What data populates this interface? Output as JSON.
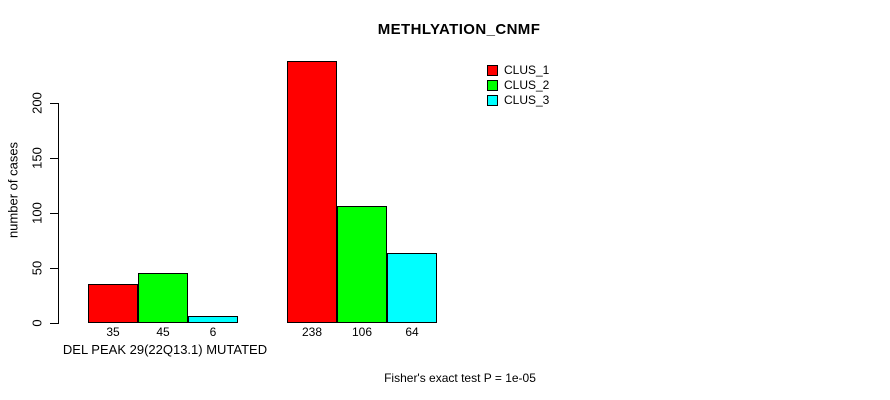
{
  "chart_data": {
    "type": "bar",
    "title": "METHLYATION_CNMF",
    "ylabel": "number of cases",
    "xlabel": "",
    "yticks": [
      0,
      50,
      100,
      150,
      200
    ],
    "ylim": [
      0,
      200
    ],
    "grid": false,
    "legend_position": "top-right",
    "legend": [
      {
        "name": "CLUS_1",
        "color": "#ff0000"
      },
      {
        "name": "CLUS_2",
        "color": "#00ff00"
      },
      {
        "name": "CLUS_3",
        "color": "#00ffff"
      }
    ],
    "groups": [
      {
        "label": "DEL PEAK 29(22Q13.1) MUTATED",
        "values": [
          35,
          45,
          6
        ]
      },
      {
        "label": "",
        "values": [
          238,
          106,
          64
        ]
      }
    ],
    "bar_border_color": "#000000",
    "axis_color": "#000000",
    "annotation": "Fisher's exact test P = 1e-05"
  }
}
